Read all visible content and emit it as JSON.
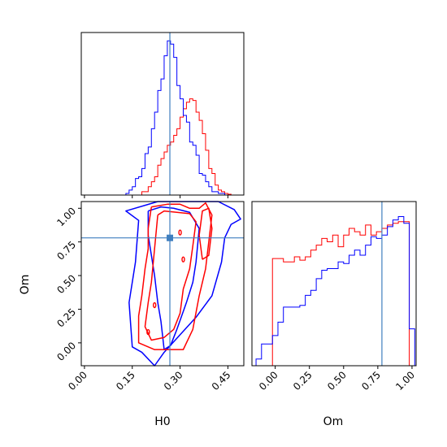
{
  "colors": {
    "series_red": "#ff0000",
    "series_blue": "#0000ff",
    "truth": "#3f7fbf",
    "axis": "#000000"
  },
  "chart_data": [
    {
      "type": "histogram",
      "panel": "H0 marginal",
      "xlim": [
        -0.01,
        0.5
      ],
      "truth": 0.268,
      "series": [
        {
          "color": "red",
          "bins": [
            0.135,
            0.145,
            0.155,
            0.165,
            0.175,
            0.185,
            0.195,
            0.205,
            0.215,
            0.225,
            0.235,
            0.245,
            0.255,
            0.265,
            0.275,
            0.285,
            0.295,
            0.305,
            0.315,
            0.325,
            0.335,
            0.345,
            0.355,
            0.365,
            0.375,
            0.385,
            0.395,
            0.405,
            0.415,
            0.425,
            0.435,
            0.445,
            0.455,
            0.465
          ],
          "values": [
            0,
            0,
            0,
            0,
            0,
            0.02,
            0.02,
            0.05,
            0.08,
            0.11,
            0.18,
            0.22,
            0.26,
            0.3,
            0.32,
            0.36,
            0.4,
            0.47,
            0.52,
            0.56,
            0.58,
            0.57,
            0.5,
            0.45,
            0.37,
            0.27,
            0.16,
            0.13,
            0.06,
            0.03,
            0.02,
            0.01,
            0.005,
            0
          ]
        },
        {
          "color": "blue",
          "bins": [
            0.135,
            0.145,
            0.155,
            0.165,
            0.175,
            0.185,
            0.195,
            0.205,
            0.215,
            0.225,
            0.235,
            0.245,
            0.255,
            0.265,
            0.275,
            0.285,
            0.295,
            0.305,
            0.315,
            0.325,
            0.335,
            0.345,
            0.355,
            0.365,
            0.375,
            0.385,
            0.395,
            0.405,
            0.415,
            0.425,
            0.435,
            0.445,
            0.455,
            0.465
          ],
          "values": [
            0.01,
            0.03,
            0.05,
            0.1,
            0.11,
            0.16,
            0.25,
            0.29,
            0.4,
            0.5,
            0.63,
            0.7,
            0.84,
            0.93,
            0.91,
            0.83,
            0.66,
            0.58,
            0.48,
            0.44,
            0.32,
            0.3,
            0.24,
            0.13,
            0.12,
            0.08,
            0.05,
            0.02,
            0.02,
            0.01,
            0.01,
            0,
            0,
            0
          ]
        }
      ]
    },
    {
      "type": "contour",
      "panel": "H0 vs Om",
      "xlabel": "H0",
      "ylabel": "Om",
      "xlim": [
        -0.01,
        0.5
      ],
      "ylim": [
        -0.17,
        1.05
      ],
      "xticks": [
        "0.00",
        "0.15",
        "0.30",
        "0.45"
      ],
      "yticks": [
        "0.00",
        "0.25",
        "0.50",
        "0.75",
        "1.00"
      ],
      "truth": {
        "x": 0.268,
        "y": 0.78
      },
      "series": [
        {
          "color": "blue",
          "level": "outer",
          "points": [
            [
              0.23,
              1.05
            ],
            [
              0.13,
              0.98
            ],
            [
              0.17,
              0.91
            ],
            [
              0.16,
              0.6
            ],
            [
              0.14,
              0.3
            ],
            [
              0.15,
              -0.03
            ],
            [
              0.18,
              -0.07
            ],
            [
              0.22,
              -0.17
            ],
            [
              0.25,
              -0.07
            ],
            [
              0.3,
              0.06
            ],
            [
              0.35,
              0.19
            ],
            [
              0.4,
              0.35
            ],
            [
              0.43,
              0.6
            ],
            [
              0.44,
              0.78
            ],
            [
              0.46,
              0.88
            ],
            [
              0.49,
              0.92
            ],
            [
              0.47,
              0.99
            ],
            [
              0.42,
              1.05
            ],
            [
              0.3,
              1.05
            ],
            [
              0.23,
              1.05
            ]
          ]
        },
        {
          "color": "blue",
          "level": "inner",
          "points": [
            [
              0.2,
              0.98
            ],
            [
              0.2,
              0.8
            ],
            [
              0.22,
              0.5
            ],
            [
              0.23,
              0.3
            ],
            [
              0.24,
              0.16
            ],
            [
              0.25,
              -0.05
            ],
            [
              0.27,
              -0.02
            ],
            [
              0.29,
              0.1
            ],
            [
              0.32,
              0.3
            ],
            [
              0.34,
              0.45
            ],
            [
              0.35,
              0.6
            ],
            [
              0.36,
              0.85
            ],
            [
              0.33,
              0.97
            ],
            [
              0.28,
              1.0
            ],
            [
              0.24,
              1.01
            ],
            [
              0.2,
              0.98
            ]
          ]
        },
        {
          "color": "red",
          "level": "outer",
          "points": [
            [
              0.21,
              1.01
            ],
            [
              0.2,
              0.85
            ],
            [
              0.2,
              0.7
            ],
            [
              0.19,
              0.55
            ],
            [
              0.18,
              0.35
            ],
            [
              0.17,
              0.2
            ],
            [
              0.17,
              0.0
            ],
            [
              0.22,
              -0.05
            ],
            [
              0.31,
              -0.05
            ],
            [
              0.34,
              0.1
            ],
            [
              0.36,
              0.35
            ],
            [
              0.38,
              0.55
            ],
            [
              0.39,
              0.75
            ],
            [
              0.4,
              0.95
            ],
            [
              0.38,
              1.04
            ],
            [
              0.36,
              1.0
            ],
            [
              0.33,
              1.0
            ],
            [
              0.3,
              1.03
            ],
            [
              0.26,
              1.03
            ],
            [
              0.21,
              1.01
            ]
          ]
        },
        {
          "color": "red",
          "level": "inner",
          "points": [
            [
              0.23,
              0.95
            ],
            [
              0.22,
              0.7
            ],
            [
              0.21,
              0.45
            ],
            [
              0.2,
              0.3
            ],
            [
              0.19,
              0.12
            ],
            [
              0.21,
              0.02
            ],
            [
              0.25,
              0.04
            ],
            [
              0.28,
              0.1
            ],
            [
              0.3,
              0.22
            ],
            [
              0.31,
              0.4
            ],
            [
              0.33,
              0.55
            ],
            [
              0.34,
              0.72
            ],
            [
              0.35,
              0.9
            ],
            [
              0.33,
              0.96
            ],
            [
              0.29,
              0.97
            ],
            [
              0.25,
              0.98
            ],
            [
              0.23,
              0.95
            ]
          ]
        },
        {
          "color": "red",
          "level": "inner-island",
          "points": [
            [
              0.37,
              0.62
            ],
            [
              0.36,
              0.8
            ],
            [
              0.37,
              0.98
            ],
            [
              0.39,
              1.0
            ],
            [
              0.4,
              0.85
            ],
            [
              0.39,
              0.65
            ],
            [
              0.37,
              0.62
            ]
          ]
        }
      ]
    },
    {
      "type": "histogram",
      "panel": "Om marginal",
      "xlabel": "Om",
      "xlim": [
        -0.17,
        1.03
      ],
      "xticks": [
        "0.00",
        "0.25",
        "0.50",
        "0.75",
        "1.00"
      ],
      "truth": 0.78,
      "series": [
        {
          "color": "red",
          "bins": [
            -0.12,
            -0.08,
            -0.04,
            0.0,
            0.04,
            0.08,
            0.12,
            0.16,
            0.2,
            0.24,
            0.28,
            0.32,
            0.36,
            0.4,
            0.44,
            0.48,
            0.52,
            0.56,
            0.6,
            0.64,
            0.68,
            0.72,
            0.76,
            0.8,
            0.84,
            0.88,
            0.92,
            0.96,
            1.0
          ],
          "values": [
            0,
            0,
            0,
            0.64,
            0.64,
            0.62,
            0.62,
            0.65,
            0.63,
            0.65,
            0.69,
            0.72,
            0.76,
            0.74,
            0.78,
            0.71,
            0.78,
            0.82,
            0.8,
            0.78,
            0.84,
            0.78,
            0.8,
            0.82,
            0.84,
            0.85,
            0.86,
            0.86,
            0
          ]
        },
        {
          "color": "blue",
          "bins": [
            -0.12,
            -0.08,
            -0.04,
            0.0,
            0.04,
            0.08,
            0.12,
            0.16,
            0.2,
            0.24,
            0.28,
            0.32,
            0.36,
            0.4,
            0.44,
            0.48,
            0.52,
            0.56,
            0.6,
            0.64,
            0.68,
            0.72,
            0.76,
            0.8,
            0.84,
            0.88,
            0.92,
            0.96,
            1.0
          ],
          "values": [
            0.04,
            0.13,
            0.13,
            0.18,
            0.26,
            0.35,
            0.35,
            0.35,
            0.36,
            0.42,
            0.45,
            0.52,
            0.57,
            0.58,
            0.58,
            0.62,
            0.61,
            0.66,
            0.69,
            0.66,
            0.72,
            0.77,
            0.76,
            0.78,
            0.83,
            0.87,
            0.89,
            0.85,
            0.22
          ]
        }
      ]
    }
  ]
}
